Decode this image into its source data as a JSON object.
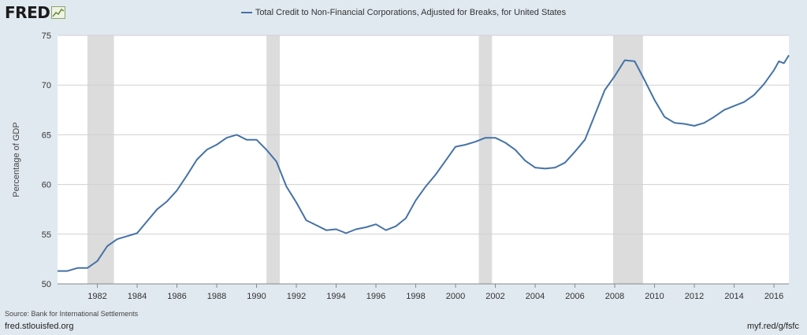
{
  "header": {
    "logo_text": "FRED",
    "logo_icon": "line-chart-icon"
  },
  "footer": {
    "source": "Source: Bank for International Settlements",
    "left_link": "fred.stlouisfed.org",
    "right_link": "myf.red/g/fsfc"
  },
  "colors": {
    "line": "#4572a7",
    "recession": "#dcdcdc",
    "background": "#e1e9f0",
    "plot_bg": "#ffffff",
    "grid": "#d0d0d0"
  },
  "chart_data": {
    "type": "line",
    "title": "",
    "xlabel": "",
    "ylabel": "Percentage of GDP",
    "ylim": [
      50,
      75
    ],
    "xlim": [
      "1980-01-01",
      "2016-10-01"
    ],
    "grid": true,
    "legend_position": "top-center",
    "y_ticks": [
      "50",
      "55",
      "60",
      "65",
      "70",
      "75"
    ],
    "x_ticks": [
      "1982",
      "1984",
      "1986",
      "1988",
      "1990",
      "1992",
      "1994",
      "1996",
      "1998",
      "2000",
      "2002",
      "2004",
      "2006",
      "2008",
      "2010",
      "2012",
      "2014",
      "2016"
    ],
    "recessions": [
      [
        "1981-07-01",
        "1982-11-01"
      ],
      [
        "1990-07-01",
        "1991-03-01"
      ],
      [
        "2001-03-01",
        "2001-11-01"
      ],
      [
        "2007-12-01",
        "2009-06-01"
      ]
    ],
    "series": [
      {
        "name": "Total Credit to Non-Financial Corporations, Adjusted for Breaks, for United States",
        "points": [
          [
            "1980-01-01",
            51.3
          ],
          [
            "1980-07-01",
            51.3
          ],
          [
            "1981-01-01",
            51.6
          ],
          [
            "1981-07-01",
            51.6
          ],
          [
            "1982-01-01",
            52.3
          ],
          [
            "1982-07-01",
            53.8
          ],
          [
            "1983-01-01",
            54.5
          ],
          [
            "1983-07-01",
            54.8
          ],
          [
            "1984-01-01",
            55.1
          ],
          [
            "1984-07-01",
            56.3
          ],
          [
            "1985-01-01",
            57.5
          ],
          [
            "1985-07-01",
            58.3
          ],
          [
            "1986-01-01",
            59.4
          ],
          [
            "1986-07-01",
            60.9
          ],
          [
            "1987-01-01",
            62.5
          ],
          [
            "1987-07-01",
            63.5
          ],
          [
            "1988-01-01",
            64.0
          ],
          [
            "1988-07-01",
            64.7
          ],
          [
            "1989-01-01",
            65.0
          ],
          [
            "1989-07-01",
            64.5
          ],
          [
            "1990-01-01",
            64.5
          ],
          [
            "1990-07-01",
            63.5
          ],
          [
            "1991-01-01",
            62.3
          ],
          [
            "1991-07-01",
            59.8
          ],
          [
            "1992-01-01",
            58.2
          ],
          [
            "1992-07-01",
            56.4
          ],
          [
            "1993-01-01",
            55.9
          ],
          [
            "1993-07-01",
            55.4
          ],
          [
            "1994-01-01",
            55.5
          ],
          [
            "1994-07-01",
            55.1
          ],
          [
            "1995-01-01",
            55.5
          ],
          [
            "1995-07-01",
            55.7
          ],
          [
            "1996-01-01",
            56.0
          ],
          [
            "1996-07-01",
            55.4
          ],
          [
            "1997-01-01",
            55.8
          ],
          [
            "1997-07-01",
            56.6
          ],
          [
            "1998-01-01",
            58.4
          ],
          [
            "1998-07-01",
            59.8
          ],
          [
            "1999-01-01",
            61.0
          ],
          [
            "1999-07-01",
            62.4
          ],
          [
            "2000-01-01",
            63.8
          ],
          [
            "2000-07-01",
            64.0
          ],
          [
            "2001-01-01",
            64.3
          ],
          [
            "2001-07-01",
            64.7
          ],
          [
            "2002-01-01",
            64.7
          ],
          [
            "2002-07-01",
            64.2
          ],
          [
            "2003-01-01",
            63.5
          ],
          [
            "2003-07-01",
            62.4
          ],
          [
            "2004-01-01",
            61.7
          ],
          [
            "2004-07-01",
            61.6
          ],
          [
            "2005-01-01",
            61.7
          ],
          [
            "2005-07-01",
            62.2
          ],
          [
            "2006-01-01",
            63.3
          ],
          [
            "2006-07-01",
            64.5
          ],
          [
            "2007-01-01",
            67.0
          ],
          [
            "2007-07-01",
            69.5
          ],
          [
            "2008-01-01",
            70.9
          ],
          [
            "2008-07-01",
            72.5
          ],
          [
            "2009-01-01",
            72.4
          ],
          [
            "2009-07-01",
            70.5
          ],
          [
            "2010-01-01",
            68.5
          ],
          [
            "2010-07-01",
            66.8
          ],
          [
            "2011-01-01",
            66.2
          ],
          [
            "2011-07-01",
            66.1
          ],
          [
            "2012-01-01",
            65.9
          ],
          [
            "2012-07-01",
            66.2
          ],
          [
            "2013-01-01",
            66.8
          ],
          [
            "2013-07-01",
            67.5
          ],
          [
            "2014-01-01",
            67.9
          ],
          [
            "2014-07-01",
            68.3
          ],
          [
            "2015-01-01",
            69.0
          ],
          [
            "2015-07-01",
            70.1
          ],
          [
            "2016-01-01",
            71.5
          ],
          [
            "2016-04-01",
            72.4
          ],
          [
            "2016-07-01",
            72.2
          ],
          [
            "2016-10-01",
            73.0
          ]
        ]
      }
    ]
  }
}
